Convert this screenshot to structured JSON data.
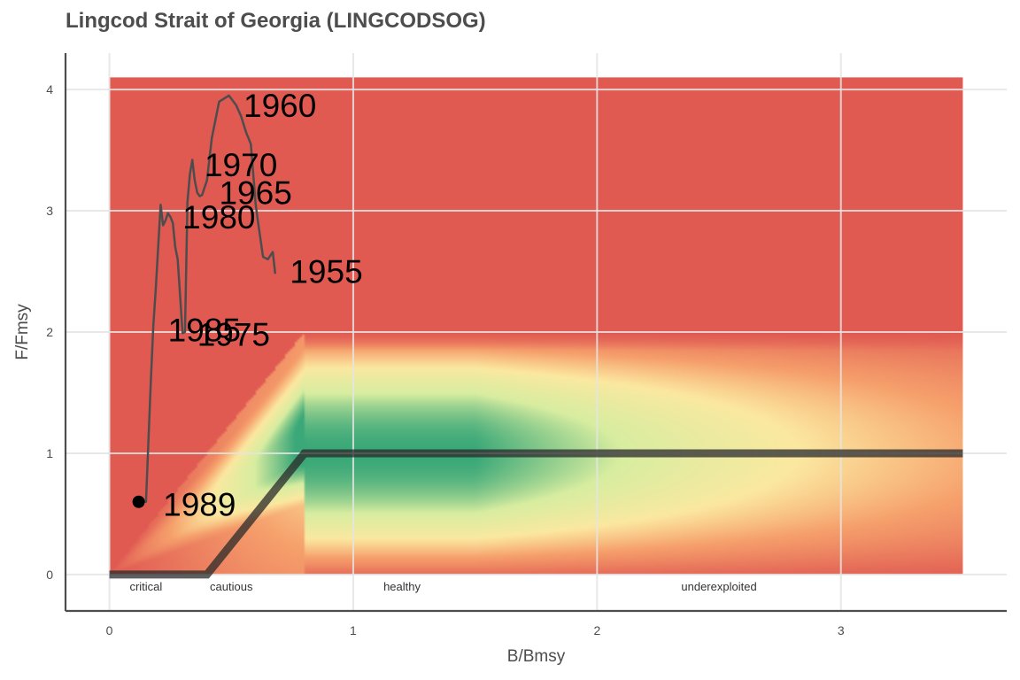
{
  "chart_data": {
    "type": "line",
    "title": "Lingcod Strait of Georgia (LINGCODSOG)",
    "xlabel": "B/Bmsy",
    "ylabel": "F/Fmsy",
    "xlim": [
      -0.18,
      3.68
    ],
    "ylim": [
      -0.3,
      4.3
    ],
    "x_ticks": [
      "0",
      "1",
      "2",
      "3"
    ],
    "y_ticks": [
      "0",
      "1",
      "2",
      "3",
      "4"
    ],
    "grid": true,
    "background": {
      "colors": {
        "red": "#e05a52",
        "orange": "#f6a06c",
        "yellow": "#fbe8a0",
        "lightgreen": "#d8eda0",
        "green": "#3aa878"
      },
      "x_range": [
        0,
        3.5
      ],
      "y_range": [
        0,
        4.1
      ]
    },
    "reference_line": {
      "x": [
        0,
        0.4,
        0.8,
        3.5
      ],
      "y": [
        0,
        0,
        1,
        1
      ],
      "color": "#2a2a2a"
    },
    "zone_labels": [
      {
        "text": "critical",
        "x": 0.15
      },
      {
        "text": "cautious",
        "x": 0.5
      },
      {
        "text": "healthy",
        "x": 1.2
      },
      {
        "text": "underexploited",
        "x": 2.5
      }
    ],
    "series": [
      {
        "color": "#4d4d4d",
        "x": [
          0.68,
          0.67,
          0.65,
          0.63,
          0.61,
          0.6,
          0.59,
          0.58,
          0.56,
          0.54,
          0.52,
          0.49,
          0.45,
          0.42,
          0.4,
          0.38,
          0.37,
          0.36,
          0.35,
          0.34,
          0.33,
          0.32,
          0.31,
          0.3,
          0.29,
          0.28,
          0.27,
          0.26,
          0.25,
          0.24,
          0.23,
          0.22,
          0.21,
          0.2,
          0.19,
          0.18,
          0.17,
          0.16,
          0.15,
          0.14,
          0.13,
          0.125,
          0.12,
          0.115
        ],
        "y": [
          2.48,
          2.66,
          2.6,
          2.62,
          2.9,
          3.05,
          3.3,
          3.55,
          3.65,
          3.78,
          3.87,
          3.95,
          3.9,
          3.6,
          3.25,
          3.13,
          3.12,
          3.15,
          3.25,
          3.42,
          3.3,
          3.07,
          2.0,
          1.99,
          2.3,
          2.6,
          2.7,
          2.9,
          2.95,
          2.98,
          2.92,
          2.88,
          3.05,
          2.7,
          2.35,
          2.05,
          1.6,
          1.1,
          0.6,
          0.6,
          0.6,
          0.6,
          0.6,
          0.6
        ]
      }
    ],
    "endpoint": {
      "x": 0.12,
      "y": 0.6
    },
    "annotations": [
      {
        "text": "1960",
        "x": 0.55,
        "y": 3.87
      },
      {
        "text": "1970",
        "x": 0.39,
        "y": 3.38
      },
      {
        "text": "1965",
        "x": 0.45,
        "y": 3.15
      },
      {
        "text": "1980",
        "x": 0.3,
        "y": 2.95
      },
      {
        "text": "1955",
        "x": 0.74,
        "y": 2.5
      },
      {
        "text": "1985",
        "x": 0.24,
        "y": 2.02
      },
      {
        "text": "1975",
        "x": 0.36,
        "y": 1.98
      },
      {
        "text": "1989",
        "x": 0.22,
        "y": 0.58
      }
    ]
  }
}
